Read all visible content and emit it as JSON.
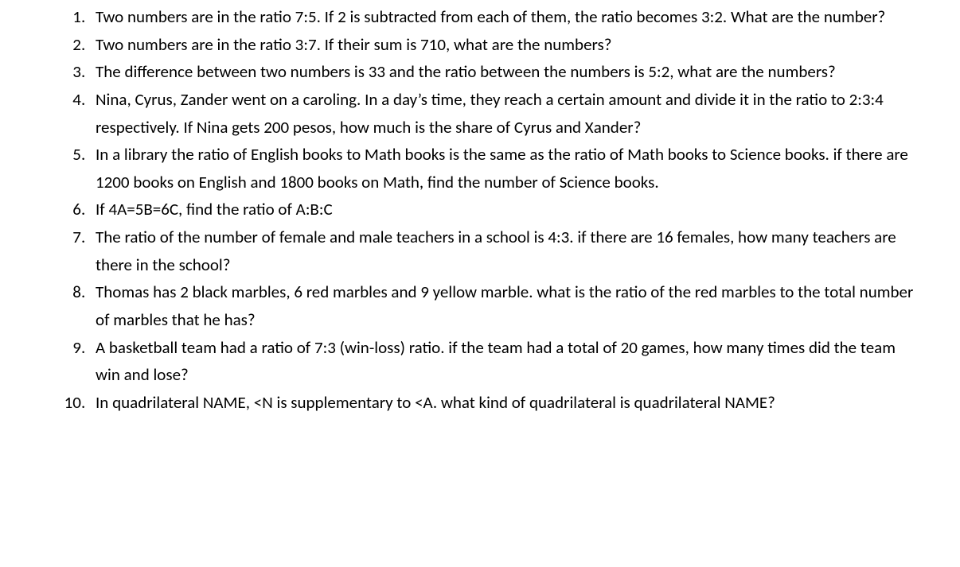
{
  "document": {
    "font_family": "Calibri",
    "font_size_pt": 16,
    "text_color": "#000000",
    "background_color": "#ffffff",
    "list_style": "decimal",
    "line_height": 1.65
  },
  "questions": [
    {
      "text": "Two numbers are in the ratio 7:5. If 2 is subtracted from each of them, the ratio becomes 3:2. What are the number?"
    },
    {
      "text": "Two numbers are in the ratio 3:7. If their sum is 710, what are the numbers?"
    },
    {
      "text": "The difference between two numbers is 33 and the ratio between the numbers is 5:2, what are the numbers?"
    },
    {
      "text": "Nina, Cyrus, Zander went on a caroling. In a day’s time, they reach a certain amount and divide it in the ratio to 2:3:4 respectively. If Nina gets 200 pesos, how much is the share of Cyrus and Xander?"
    },
    {
      "text": "In a library the ratio of English books to Math books is the same as the ratio of Math books to Science books. if there are 1200 books on English and 1800 books on Math, find the number of Science books."
    },
    {
      "text": "If 4A=5B=6C, find the ratio of A:B:C"
    },
    {
      "text": "The ratio of the number of female and male teachers in a school is 4:3. if there are 16 females, how many teachers are there in the school?"
    },
    {
      "text": "Thomas has 2 black marbles, 6 red marbles and 9 yellow marble. what is the ratio of the red marbles to the total number of marbles that he has?"
    },
    {
      "text": "A basketball team had a ratio of 7:3 (win-loss) ratio. if the team had a total of 20 games, how many times did the team win and lose?"
    },
    {
      "text": "In quadrilateral NAME, <N is supplementary to <A. what kind of quadrilateral is quadrilateral NAME?"
    }
  ]
}
